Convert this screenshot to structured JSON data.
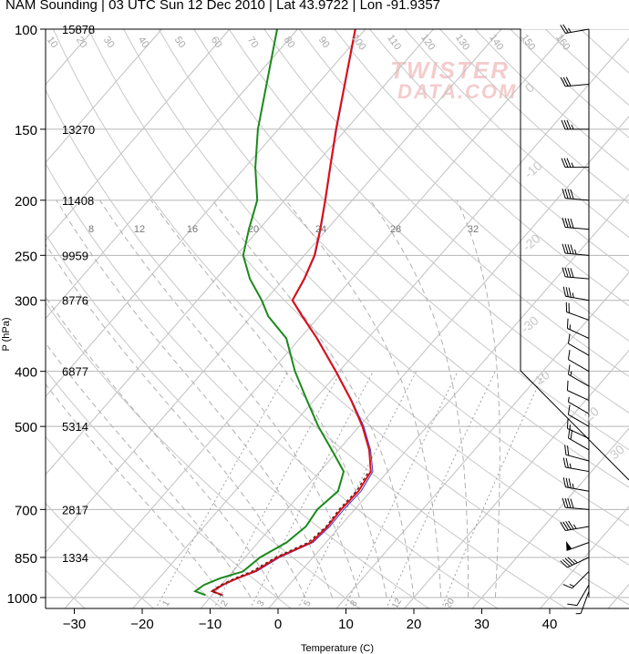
{
  "title": "NAM Sounding | 03 UTC Sun 12 Dec 2010 | Lat 43.9722 | Lon -91.9357",
  "watermark": {
    "line1": "TWISTER",
    "line2": "DATA.COM"
  },
  "chart_data": {
    "type": "skew-t",
    "xlabel": "Temperature (C)",
    "ylabel": "P (hPa)",
    "xlim": [
      -35,
      50
    ],
    "ylim": [
      1030,
      100
    ],
    "x_ticks": [
      -30,
      -20,
      -10,
      0,
      10,
      20,
      30,
      40
    ],
    "pressure_ticks": [
      {
        "p": 100,
        "label": "100",
        "height": "15878"
      },
      {
        "p": 150,
        "label": "150",
        "height": "13270"
      },
      {
        "p": 200,
        "label": "200",
        "height": "11408"
      },
      {
        "p": 250,
        "label": "250",
        "height": "9959"
      },
      {
        "p": 300,
        "label": "300",
        "height": "8776"
      },
      {
        "p": 400,
        "label": "400",
        "height": "6877"
      },
      {
        "p": 500,
        "label": "500",
        "height": "5314"
      },
      {
        "p": 700,
        "label": "700",
        "height": "2817"
      },
      {
        "p": 850,
        "label": "850",
        "height": "1334"
      },
      {
        "p": 1000,
        "label": "1000",
        "height": ""
      }
    ],
    "isotherm_labels": [
      "-30",
      "-20",
      "-10",
      "0",
      "10",
      "20",
      "30"
    ],
    "dry_adiabat_labels": [
      "10",
      "20",
      "30",
      "40",
      "50",
      "60",
      "70",
      "80",
      "90",
      "100",
      "110",
      "120",
      "130",
      "140",
      "150",
      "160"
    ],
    "mixing_ratio_labels": [
      "1",
      "2",
      "3",
      "5",
      "8",
      "12",
      "20"
    ],
    "moist_adiabat_labels": [
      "8",
      "12",
      "16",
      "20",
      "24",
      "28",
      "32"
    ],
    "temperature": [
      {
        "p": 990,
        "t": -8.5
      },
      {
        "p": 975,
        "t": -10.5
      },
      {
        "p": 950,
        "t": -9.8
      },
      {
        "p": 925,
        "t": -8.5
      },
      {
        "p": 900,
        "t": -6.8
      },
      {
        "p": 850,
        "t": -5.2
      },
      {
        "p": 800,
        "t": -2.2
      },
      {
        "p": 750,
        "t": -1.8
      },
      {
        "p": 700,
        "t": -2.0
      },
      {
        "p": 650,
        "t": -1.8
      },
      {
        "p": 600,
        "t": -2.5
      },
      {
        "p": 550,
        "t": -5.5
      },
      {
        "p": 500,
        "t": -9.5
      },
      {
        "p": 450,
        "t": -14.5
      },
      {
        "p": 400,
        "t": -20.5
      },
      {
        "p": 350,
        "t": -27.5
      },
      {
        "p": 320,
        "t": -32.5
      },
      {
        "p": 300,
        "t": -36.0
      },
      {
        "p": 275,
        "t": -37.0
      },
      {
        "p": 250,
        "t": -38.5
      },
      {
        "p": 225,
        "t": -41.0
      },
      {
        "p": 200,
        "t": -44.0
      },
      {
        "p": 175,
        "t": -47.5
      },
      {
        "p": 150,
        "t": -51.5
      },
      {
        "p": 125,
        "t": -56.0
      },
      {
        "p": 100,
        "t": -61.5
      }
    ],
    "virtual_temperature": [
      {
        "p": 990,
        "t": -8.4
      },
      {
        "p": 975,
        "t": -10.3
      },
      {
        "p": 950,
        "t": -9.6
      },
      {
        "p": 925,
        "t": -8.3
      },
      {
        "p": 900,
        "t": -6.5
      },
      {
        "p": 850,
        "t": -4.9
      },
      {
        "p": 800,
        "t": -1.9
      },
      {
        "p": 750,
        "t": -1.5
      },
      {
        "p": 700,
        "t": -1.6
      },
      {
        "p": 650,
        "t": -1.4
      },
      {
        "p": 600,
        "t": -2.2
      },
      {
        "p": 550,
        "t": -5.3
      },
      {
        "p": 500,
        "t": -9.3
      },
      {
        "p": 450,
        "t": -14.4
      },
      {
        "p": 400,
        "t": -20.4
      },
      {
        "p": 350,
        "t": -27.4
      },
      {
        "p": 320,
        "t": -32.4
      },
      {
        "p": 300,
        "t": -35.9
      },
      {
        "p": 275,
        "t": -36.9
      },
      {
        "p": 250,
        "t": -38.4
      },
      {
        "p": 225,
        "t": -40.9
      },
      {
        "p": 200,
        "t": -43.9
      },
      {
        "p": 175,
        "t": -47.4
      },
      {
        "p": 150,
        "t": -51.4
      },
      {
        "p": 125,
        "t": -55.9
      },
      {
        "p": 100,
        "t": -61.4
      }
    ],
    "parcel": [
      {
        "p": 990,
        "t": -8.7
      },
      {
        "p": 975,
        "t": -10.6
      },
      {
        "p": 950,
        "t": -10.0
      },
      {
        "p": 925,
        "t": -8.8
      },
      {
        "p": 900,
        "t": -7.2
      },
      {
        "p": 850,
        "t": -5.5
      },
      {
        "p": 800,
        "t": -2.6
      },
      {
        "p": 750,
        "t": -2.0
      },
      {
        "p": 700,
        "t": -2.3
      },
      {
        "p": 650,
        "t": -2.1
      },
      {
        "p": 600,
        "t": -2.8
      }
    ],
    "dewpoint": [
      {
        "p": 990,
        "t": -11.0
      },
      {
        "p": 975,
        "t": -13.0
      },
      {
        "p": 950,
        "t": -12.5
      },
      {
        "p": 925,
        "t": -11.0
      },
      {
        "p": 900,
        "t": -8.5
      },
      {
        "p": 850,
        "t": -7.8
      },
      {
        "p": 800,
        "t": -5.8
      },
      {
        "p": 750,
        "t": -5.0
      },
      {
        "p": 700,
        "t": -5.5
      },
      {
        "p": 650,
        "t": -4.8
      },
      {
        "p": 600,
        "t": -6.5
      },
      {
        "p": 550,
        "t": -11.0
      },
      {
        "p": 500,
        "t": -16.0
      },
      {
        "p": 450,
        "t": -21.0
      },
      {
        "p": 400,
        "t": -26.5
      },
      {
        "p": 350,
        "t": -32.0
      },
      {
        "p": 320,
        "t": -37.5
      },
      {
        "p": 300,
        "t": -40.5
      },
      {
        "p": 275,
        "t": -45.0
      },
      {
        "p": 250,
        "t": -49.0
      },
      {
        "p": 225,
        "t": -51.5
      },
      {
        "p": 200,
        "t": -54.0
      },
      {
        "p": 175,
        "t": -58.5
      },
      {
        "p": 150,
        "t": -63.0
      },
      {
        "p": 125,
        "t": -67.5
      },
      {
        "p": 100,
        "t": -73.0
      }
    ],
    "wind_barbs": [
      {
        "p": 100,
        "dir": 260,
        "spd": 25
      },
      {
        "p": 125,
        "dir": 265,
        "spd": 30
      },
      {
        "p": 150,
        "dir": 270,
        "spd": 35
      },
      {
        "p": 175,
        "dir": 270,
        "spd": 35
      },
      {
        "p": 200,
        "dir": 275,
        "spd": 40
      },
      {
        "p": 225,
        "dir": 275,
        "spd": 40
      },
      {
        "p": 250,
        "dir": 275,
        "spd": 45
      },
      {
        "p": 275,
        "dir": 275,
        "spd": 40
      },
      {
        "p": 300,
        "dir": 280,
        "spd": 35
      },
      {
        "p": 325,
        "dir": 290,
        "spd": 20
      },
      {
        "p": 350,
        "dir": 295,
        "spd": 15
      },
      {
        "p": 375,
        "dir": 300,
        "spd": 10
      },
      {
        "p": 400,
        "dir": 300,
        "spd": 10
      },
      {
        "p": 425,
        "dir": 300,
        "spd": 15
      },
      {
        "p": 450,
        "dir": 295,
        "spd": 10
      },
      {
        "p": 475,
        "dir": 300,
        "spd": 5
      },
      {
        "p": 500,
        "dir": 300,
        "spd": 10
      },
      {
        "p": 525,
        "dir": 295,
        "spd": 15
      },
      {
        "p": 550,
        "dir": 300,
        "spd": 20
      },
      {
        "p": 575,
        "dir": 285,
        "spd": 20
      },
      {
        "p": 600,
        "dir": 280,
        "spd": 25
      },
      {
        "p": 650,
        "dir": 280,
        "spd": 35
      },
      {
        "p": 700,
        "dir": 275,
        "spd": 40
      },
      {
        "p": 750,
        "dir": 260,
        "spd": 45
      },
      {
        "p": 800,
        "dir": 250,
        "spd": 50
      },
      {
        "p": 850,
        "dir": 245,
        "spd": 45
      },
      {
        "p": 900,
        "dir": 225,
        "spd": 15
      },
      {
        "p": 950,
        "dir": 210,
        "spd": 10
      },
      {
        "p": 975,
        "dir": 200,
        "spd": 5
      }
    ]
  }
}
